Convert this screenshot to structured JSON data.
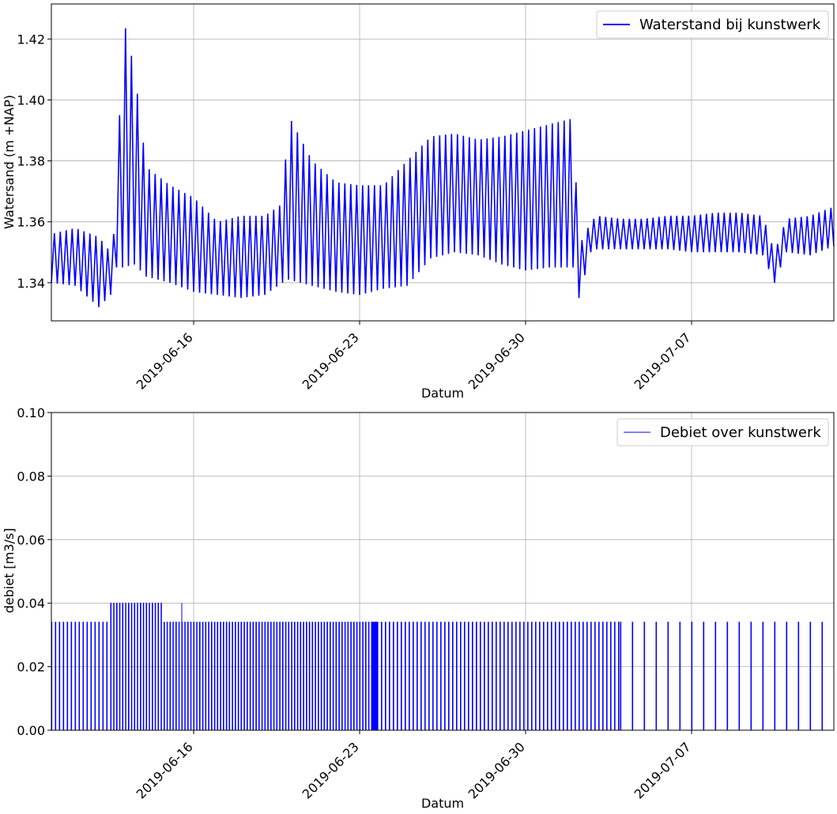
{
  "chart_data": [
    {
      "type": "line",
      "xlabel": "Datum",
      "ylabel": "Watersand (m +NAP)",
      "x_tick_labels": [
        "2019-06-16",
        "2019-06-23",
        "2019-06-30",
        "2019-07-07"
      ],
      "x_ticks": [
        "2019-06-16",
        "2019-06-23",
        "2019-06-30",
        "2019-07-07"
      ],
      "xlim": [
        "2019-06-10",
        "2019-07-13"
      ],
      "y_ticks": [
        1.34,
        1.36,
        1.38,
        1.4,
        1.42
      ],
      "y_tick_labels": [
        "1.34",
        "1.36",
        "1.38",
        "1.40",
        "1.42"
      ],
      "ylim": [
        1.3275,
        1.4315
      ],
      "grid": true,
      "legend_position": "top-right",
      "series": [
        {
          "name": "Waterstand bij kunstwerk",
          "color": "#0000ff",
          "sampling": "daily oscillation shown as per-cycle envelope",
          "x": [
            "2019-06-10",
            "2019-06-11",
            "2019-06-12",
            "2019-06-12T12:00",
            "2019-06-12T18:00",
            "2019-06-13",
            "2019-06-13T12:00",
            "2019-06-14",
            "2019-06-15",
            "2019-06-16",
            "2019-06-17",
            "2019-06-18",
            "2019-06-19",
            "2019-06-19T18:00",
            "2019-06-20",
            "2019-06-21",
            "2019-06-22",
            "2019-06-23",
            "2019-06-24",
            "2019-06-25",
            "2019-06-26",
            "2019-06-27",
            "2019-06-28",
            "2019-06-29",
            "2019-06-30",
            "2019-07-01",
            "2019-07-02",
            "2019-07-02T06:00",
            "2019-07-02T18:00",
            "2019-07-03",
            "2019-07-04",
            "2019-07-05",
            "2019-07-06",
            "2019-07-07",
            "2019-07-08",
            "2019-07-09",
            "2019-07-10",
            "2019-07-10T12:00",
            "2019-07-11",
            "2019-07-12",
            "2019-07-13"
          ],
          "high": [
            1.356,
            1.358,
            1.355,
            1.35,
            1.362,
            1.428,
            1.41,
            1.378,
            1.372,
            1.368,
            1.36,
            1.362,
            1.362,
            1.366,
            1.395,
            1.38,
            1.373,
            1.372,
            1.372,
            1.38,
            1.388,
            1.389,
            1.387,
            1.388,
            1.39,
            1.392,
            1.394,
            1.352,
            1.36,
            1.362,
            1.361,
            1.361,
            1.362,
            1.362,
            1.363,
            1.363,
            1.362,
            1.35,
            1.361,
            1.362,
            1.365
          ],
          "low": [
            1.34,
            1.339,
            1.332,
            1.336,
            1.345,
            1.345,
            1.346,
            1.342,
            1.34,
            1.337,
            1.336,
            1.335,
            1.336,
            1.34,
            1.341,
            1.339,
            1.337,
            1.336,
            1.338,
            1.339,
            1.348,
            1.35,
            1.349,
            1.346,
            1.344,
            1.345,
            1.345,
            1.335,
            1.35,
            1.351,
            1.351,
            1.351,
            1.351,
            1.35,
            1.35,
            1.35,
            1.349,
            1.34,
            1.35,
            1.349,
            1.352
          ]
        }
      ]
    },
    {
      "type": "line",
      "xlabel": "Datum",
      "ylabel": "debiet [m3/s]",
      "x_tick_labels": [
        "2019-06-16",
        "2019-06-23",
        "2019-06-30",
        "2019-07-07"
      ],
      "x_ticks": [
        "2019-06-16",
        "2019-06-23",
        "2019-06-30",
        "2019-07-07"
      ],
      "xlim": [
        "2019-06-10",
        "2019-07-13"
      ],
      "y_ticks": [
        0.0,
        0.02,
        0.04,
        0.06,
        0.08,
        0.1
      ],
      "y_tick_labels": [
        "0.00",
        "0.02",
        "0.04",
        "0.06",
        "0.08",
        "0.10"
      ],
      "ylim": [
        0.0,
        0.1
      ],
      "grid": true,
      "legend_position": "top-right",
      "series": [
        {
          "name": "Debiet over kunstwerk",
          "color": "#0000ff",
          "segments": [
            {
              "from": "2019-06-10",
              "to": "2019-06-12T12:00",
              "peak": 0.034,
              "pulses_per_day": 6
            },
            {
              "from": "2019-06-12T12:00",
              "to": "2019-06-14T18:00",
              "peak": 0.04,
              "pulses_per_day": 8
            },
            {
              "from": "2019-06-14T18:00",
              "to": "2019-06-23T12:00",
              "peak": 0.034,
              "pulses_per_day": 8
            },
            {
              "from": "2019-06-23T12:00",
              "to": "2019-06-23T18:00",
              "peak": 0.034,
              "pulses_per_day": 24
            },
            {
              "from": "2019-06-23T18:00",
              "to": "2019-07-04",
              "peak": 0.034,
              "pulses_per_day": 6
            },
            {
              "from": "2019-07-04",
              "to": "2019-07-13",
              "peak": 0.034,
              "pulses_per_day": 2
            }
          ],
          "isolated_peaks": [
            {
              "x": "2019-06-15T12:00",
              "value": 0.04
            }
          ]
        }
      ]
    }
  ]
}
